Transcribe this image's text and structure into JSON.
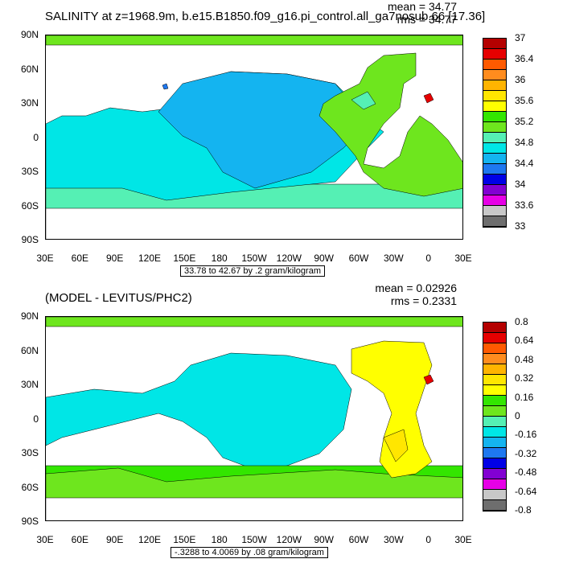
{
  "chart_data": [
    {
      "type": "heatmap",
      "title": "SALINITY at z=1968.9m, b.e15.B1850.f09_g16.pi_control.all_ga7nosub.66 [17.36]",
      "stats": {
        "mean": "mean = 34.77",
        "rms": "rms = 34.77"
      },
      "ytick_labels": [
        "90N",
        "60N",
        "30N",
        "0",
        "30S",
        "60S",
        "90S"
      ],
      "xtick_labels": [
        "30E",
        "60E",
        "90E",
        "120E",
        "150E",
        "180",
        "150W",
        "120W",
        "90W",
        "60W",
        "30W",
        "0",
        "30E"
      ],
      "range_label": "33.78 to 42.67 by .2 gram/kilogram",
      "colorbar_labels": [
        "37",
        "36.4",
        "36",
        "35.6",
        "35.2",
        "34.8",
        "34.4",
        "34",
        "33.6",
        "33"
      ],
      "colorbar_colors": [
        "#b40000",
        "#e60000",
        "#ff5a00",
        "#ff8c1e",
        "#ffb400",
        "#ffe600",
        "#ffff00",
        "#33e600",
        "#6ee61e",
        "#55f0b4",
        "#00e6e6",
        "#14b4f0",
        "#1e78f0",
        "#0000e6",
        "#8200d2",
        "#e600e6",
        "#c8c8c8",
        "#6e6e6e"
      ],
      "land_color": "#ffffff"
    },
    {
      "type": "heatmap",
      "title": "(MODEL - LEVITUS/PHC2)",
      "stats": {
        "mean": "mean = 0.02926",
        "rms": "rms = 0.2331"
      },
      "ytick_labels": [
        "90N",
        "60N",
        "30N",
        "0",
        "30S",
        "60S",
        "90S"
      ],
      "xtick_labels": [
        "30E",
        "60E",
        "90E",
        "120E",
        "150E",
        "180",
        "150W",
        "120W",
        "90W",
        "60W",
        "30W",
        "0",
        "30E"
      ],
      "range_label": "-.3288 to 4.0069 by .08 gram/kilogram",
      "colorbar_labels": [
        "0.8",
        "0.64",
        "0.48",
        "0.32",
        "0.16",
        "0",
        "-0.16",
        "-0.32",
        "-0.48",
        "-0.64",
        "-0.8"
      ],
      "colorbar_colors": [
        "#b40000",
        "#e60000",
        "#ff5a00",
        "#ff8c1e",
        "#ffb400",
        "#ffe600",
        "#ffff00",
        "#33e600",
        "#6ee61e",
        "#55f0b4",
        "#00e6e6",
        "#14b4f0",
        "#1e78f0",
        "#0000e6",
        "#8200d2",
        "#e600e6",
        "#c8c8c8",
        "#6e6e6e"
      ],
      "land_color": "#ffffff"
    }
  ]
}
